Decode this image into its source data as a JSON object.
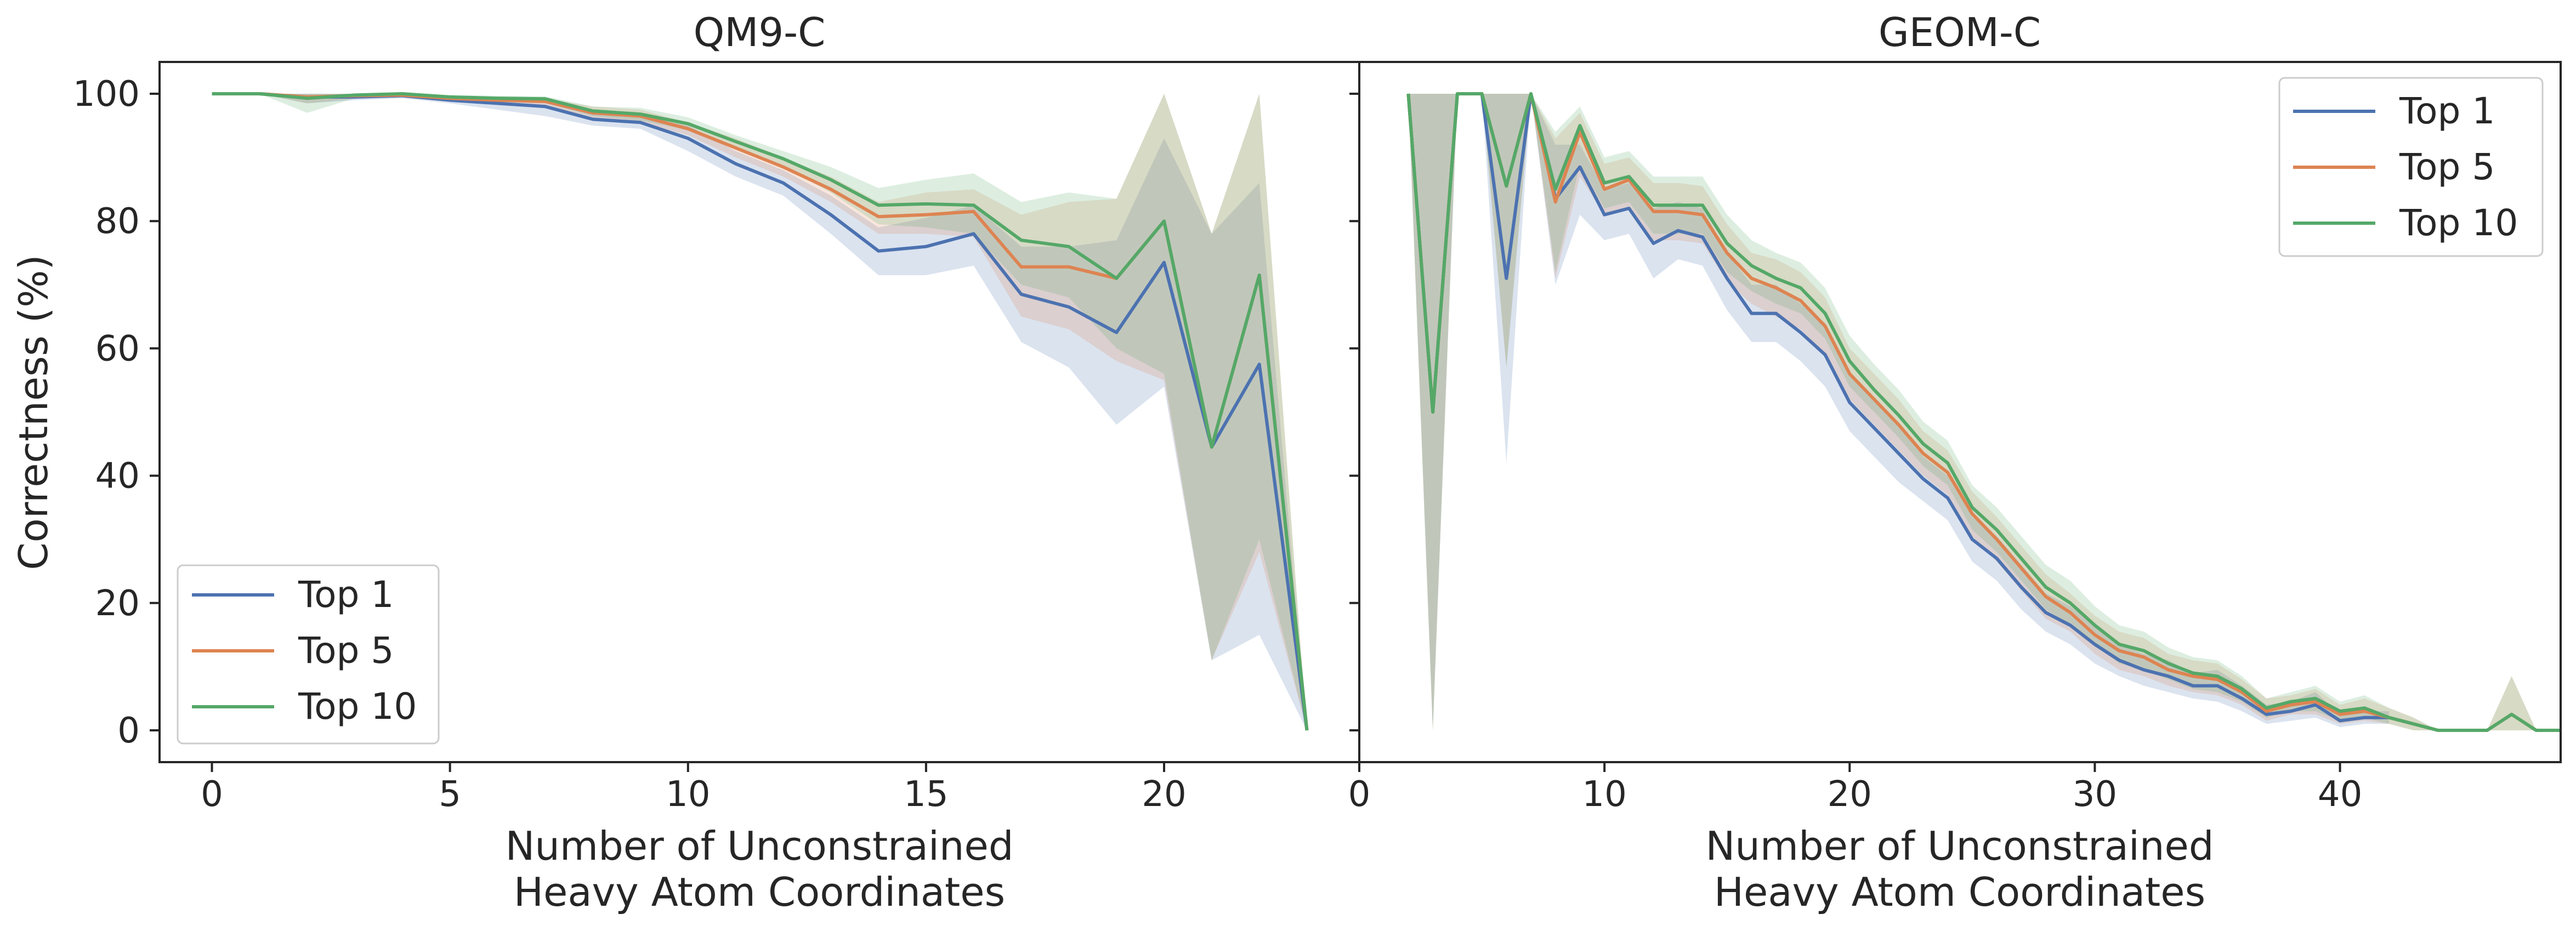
{
  "figure": {
    "ylabel": "Correctness (%)",
    "xlabel_line1": "Number of Unconstrained",
    "xlabel_line2": "Heavy Atom Coordinates"
  },
  "colors": {
    "top1": "#4c72b0",
    "top5": "#dd8452",
    "top10": "#55a868"
  },
  "chart_data": [
    {
      "type": "line",
      "title": "QM9-C",
      "xlabel": "Number of Unconstrained Heavy Atom Coordinates",
      "ylabel": "Correctness (%)",
      "xlim": [
        -1.1,
        24.1
      ],
      "ylim": [
        -5,
        105
      ],
      "xticks": [
        0,
        5,
        10,
        15,
        20
      ],
      "yticks": [
        0,
        20,
        40,
        60,
        80,
        100
      ],
      "legend": "lower-left",
      "grid": false,
      "x": [
        0,
        1,
        2,
        3,
        4,
        5,
        6,
        7,
        8,
        9,
        10,
        11,
        12,
        13,
        14,
        15,
        16,
        17,
        18,
        19,
        20,
        21,
        22,
        23
      ],
      "series": [
        {
          "name": "Top 1",
          "color": "#4c72b0",
          "values": [
            100,
            100,
            99.5,
            99.5,
            99.7,
            99,
            98.5,
            98,
            96,
            95.5,
            93,
            89,
            86,
            81,
            75.3,
            76,
            78,
            68.5,
            66.5,
            62.5,
            73.5,
            44.5,
            57.5,
            0
          ],
          "lower": [
            100,
            100,
            98.5,
            99,
            99.3,
            98.5,
            97.5,
            96.5,
            95,
            94.5,
            91,
            87,
            84,
            78,
            71.5,
            71.5,
            73,
            61,
            57,
            48,
            54,
            11,
            15,
            0
          ],
          "upper": [
            100,
            100,
            100,
            100,
            100,
            99.5,
            99.2,
            99,
            97,
            96.5,
            95,
            91,
            88,
            84,
            79,
            80.5,
            82.5,
            76,
            76,
            77,
            93,
            78,
            86,
            0
          ]
        },
        {
          "name": "Top 5",
          "color": "#dd8452",
          "values": [
            100,
            100,
            99.5,
            99.7,
            99.8,
            99.3,
            99,
            98.8,
            97,
            96.5,
            94.5,
            91.5,
            88.5,
            85,
            80.7,
            81,
            81.5,
            72.8,
            72.8,
            71,
            80,
            44.5,
            71.5,
            0
          ],
          "lower": [
            100,
            100,
            98.5,
            99.2,
            99.5,
            99,
            98.5,
            98.2,
            96,
            95.5,
            93.5,
            90,
            87,
            83,
            78,
            78,
            77.5,
            65,
            63,
            58,
            55,
            11,
            28,
            0
          ],
          "upper": [
            100,
            100,
            100,
            100,
            100,
            99.7,
            99.5,
            99.3,
            98,
            97.5,
            95.5,
            93,
            90,
            87,
            83,
            84.5,
            85,
            81,
            83,
            83.5,
            100,
            78,
            100,
            0
          ]
        },
        {
          "name": "Top 10",
          "color": "#55a868",
          "values": [
            100,
            100,
            99.3,
            99.8,
            100,
            99.5,
            99.3,
            99.2,
            97.3,
            96.8,
            95.3,
            92.5,
            89.8,
            86.5,
            82.5,
            82.7,
            82.5,
            77,
            76,
            71,
            80,
            44.5,
            71.5,
            0
          ],
          "lower": [
            100,
            100,
            97,
            99.3,
            99.7,
            99.2,
            98.8,
            98.6,
            96.5,
            95.8,
            94.3,
            91.5,
            88.5,
            84.5,
            79.5,
            79,
            78,
            70,
            68,
            60,
            56,
            11,
            30,
            0
          ],
          "upper": [
            100,
            100,
            100,
            100,
            100,
            99.8,
            99.7,
            99.6,
            98,
            97.8,
            96.3,
            93.5,
            91,
            88.5,
            85.2,
            86.5,
            87.5,
            83,
            84.5,
            83.5,
            100,
            78,
            100,
            0
          ]
        }
      ]
    },
    {
      "type": "line",
      "title": "GEOM-C",
      "xlabel": "Number of Unconstrained Heavy Atom Coordinates",
      "ylabel": "",
      "xlim": [
        0,
        49
      ],
      "ylim": [
        -5,
        105
      ],
      "xticks": [
        0,
        10,
        20,
        30,
        40
      ],
      "yticks": [
        0,
        20,
        40,
        60,
        80,
        100
      ],
      "legend": "upper-right",
      "grid": false,
      "x": [
        2,
        3,
        4,
        5,
        6,
        7,
        8,
        9,
        10,
        11,
        12,
        13,
        14,
        15,
        16,
        17,
        18,
        19,
        20,
        21,
        22,
        23,
        24,
        25,
        26,
        27,
        28,
        29,
        30,
        31,
        32,
        33,
        34,
        35,
        36,
        37,
        38,
        39,
        40,
        41,
        42,
        43,
        44,
        45,
        46,
        47,
        48,
        49
      ],
      "series": [
        {
          "name": "Top 1",
          "color": "#4c72b0",
          "values": [
            100,
            50,
            100,
            100,
            71,
            100,
            83.5,
            88.5,
            81,
            82,
            76.5,
            78.5,
            77.5,
            71,
            65.5,
            65.5,
            62.5,
            59,
            51.5,
            47.5,
            43.5,
            39.5,
            36.5,
            30,
            27,
            22.5,
            18.5,
            16.5,
            13.5,
            11,
            9.5,
            8.5,
            7,
            7,
            5,
            2.5,
            3,
            4,
            1.5,
            2,
            2,
            null,
            null,
            null,
            null,
            null,
            null,
            null
          ],
          "lower": [
            100,
            0,
            100,
            100,
            42,
            100,
            70,
            81,
            77,
            78,
            71,
            74,
            73,
            66,
            61,
            61,
            58,
            54,
            47,
            43,
            39,
            36,
            33,
            26.5,
            23.5,
            19,
            15.5,
            13.5,
            10.5,
            8.5,
            7,
            6,
            5,
            4.5,
            3,
            1,
            1.5,
            2,
            0.5,
            1,
            1,
            null,
            null,
            null,
            null,
            null,
            null,
            null
          ],
          "upper": [
            100,
            100,
            100,
            100,
            100,
            100,
            92,
            92,
            85,
            86,
            82,
            83,
            82,
            75,
            70,
            70,
            67,
            64,
            56,
            52,
            48,
            43,
            40,
            33.5,
            30.5,
            26,
            21.5,
            19.5,
            16.5,
            13.5,
            12,
            11,
            9,
            9.5,
            7,
            4,
            4.5,
            6,
            2.5,
            3,
            3,
            null,
            null,
            null,
            null,
            null,
            null,
            null
          ]
        },
        {
          "name": "Top 5",
          "color": "#dd8452",
          "values": [
            100,
            50,
            100,
            100,
            85.5,
            100,
            83,
            94,
            85,
            86.5,
            81.5,
            81.5,
            81,
            75,
            71,
            69.5,
            67.5,
            63.5,
            56,
            52,
            48,
            43.5,
            40.5,
            34,
            30,
            25.5,
            21,
            18.5,
            15,
            12.5,
            11.5,
            9.5,
            8.5,
            8,
            6,
            3,
            4,
            4.5,
            2.5,
            3,
            2,
            1,
            0,
            0,
            0,
            2.5,
            0,
            0
          ],
          "lower": [
            100,
            0,
            100,
            100,
            57,
            100,
            71,
            87,
            81,
            82,
            77,
            77,
            76.5,
            70.5,
            67,
            65,
            63,
            59,
            52,
            48,
            44,
            40,
            37,
            30.5,
            26.5,
            22,
            17.5,
            15.5,
            12,
            9.5,
            8.5,
            7,
            6,
            5.5,
            4,
            1.5,
            2.5,
            2.5,
            1,
            1.5,
            1,
            0,
            0,
            0,
            0,
            0,
            0,
            0
          ],
          "upper": [
            100,
            100,
            100,
            100,
            100,
            100,
            93,
            97,
            89,
            90,
            86,
            86,
            85.5,
            79.5,
            75,
            74,
            72,
            68,
            60,
            56,
            52,
            47,
            44,
            37.5,
            33.5,
            29,
            24.5,
            21.5,
            18,
            15.5,
            14.5,
            12,
            11,
            10.5,
            8,
            5,
            5.5,
            6.5,
            4,
            5,
            3.5,
            2,
            0,
            0,
            0,
            8.5,
            0,
            0
          ]
        },
        {
          "name": "Top 10",
          "color": "#55a868",
          "values": [
            100,
            50,
            100,
            100,
            85.5,
            100,
            85,
            95,
            86,
            87,
            82.5,
            82.5,
            82.5,
            76.5,
            73,
            71,
            69.5,
            65.5,
            58,
            53.5,
            49.5,
            45,
            42,
            35,
            31.5,
            27,
            22.5,
            20,
            16.5,
            13.5,
            12.5,
            10.5,
            9,
            8.5,
            6.5,
            3.5,
            4.5,
            5,
            3,
            3.5,
            2,
            1,
            0,
            0,
            0,
            2.5,
            0,
            0
          ],
          "lower": [
            100,
            0,
            100,
            100,
            57,
            100,
            72,
            89,
            82,
            83,
            78,
            78,
            78,
            72,
            69,
            67,
            65.5,
            61.5,
            54,
            50,
            46,
            41.5,
            38.5,
            31.5,
            28,
            23.5,
            19,
            16.5,
            13.5,
            10.5,
            9.5,
            8,
            6.5,
            6,
            4.5,
            2,
            3,
            3,
            1.5,
            2,
            1,
            0,
            0,
            0,
            0,
            0,
            0,
            0
          ],
          "upper": [
            100,
            100,
            100,
            100,
            100,
            100,
            94,
            98,
            90,
            91,
            87,
            87,
            87,
            81,
            77,
            75,
            73.5,
            69.5,
            62,
            57.5,
            53.5,
            48.5,
            45.5,
            38.5,
            35,
            30.5,
            26,
            23.5,
            19.5,
            16.5,
            15.5,
            13,
            11.5,
            11,
            8.5,
            5,
            6,
            7,
            4.5,
            5.5,
            3.5,
            2,
            0,
            0,
            0,
            8.5,
            0,
            0
          ]
        }
      ]
    }
  ]
}
